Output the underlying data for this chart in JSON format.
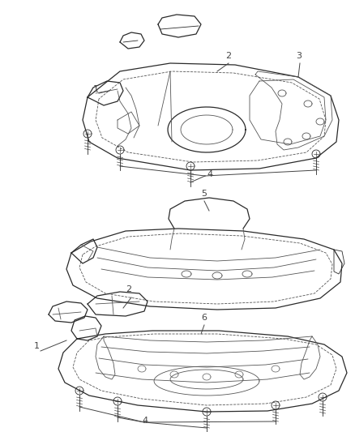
{
  "background_color": "#ffffff",
  "line_color": "#2a2a2a",
  "label_color": "#444444",
  "fig_width": 4.38,
  "fig_height": 5.33,
  "dpi": 100
}
